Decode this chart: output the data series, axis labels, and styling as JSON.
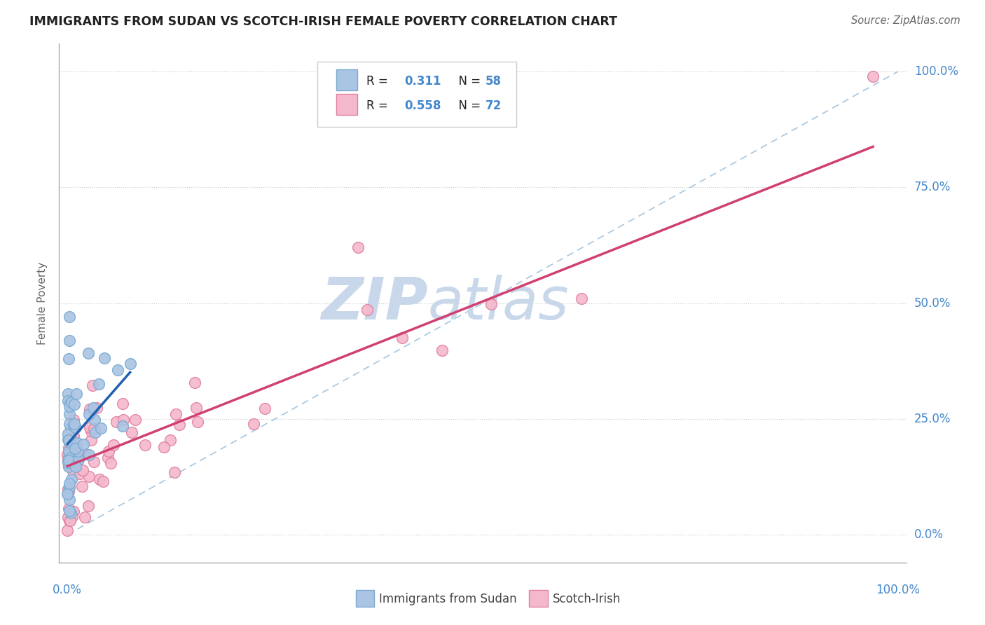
{
  "title": "IMMIGRANTS FROM SUDAN VS SCOTCH-IRISH FEMALE POVERTY CORRELATION CHART",
  "source": "Source: ZipAtlas.com",
  "ylabel": "Female Poverty",
  "ytick_labels": [
    "0.0%",
    "25.0%",
    "50.0%",
    "75.0%",
    "100.0%"
  ],
  "ytick_values": [
    0.0,
    0.25,
    0.5,
    0.75,
    1.0
  ],
  "series1_color": "#aac4e4",
  "series1_edge": "#7aaad0",
  "series2_color": "#f4b8cc",
  "series2_edge": "#e080a0",
  "line1_color": "#2060b0",
  "line2_color": "#d04070",
  "ref_line_color": "#90b8d8",
  "background_color": "#ffffff",
  "watermark_zip": "ZIP",
  "watermark_atlas": "atlas",
  "title_color": "#222222",
  "axis_color": "#aaaaaa",
  "grid_color": "#cccccc",
  "watermark_color": "#c8d8ea",
  "tick_label_color": "#4488cc",
  "legend_r_color": "#222222",
  "legend_v_color": "#4488cc"
}
